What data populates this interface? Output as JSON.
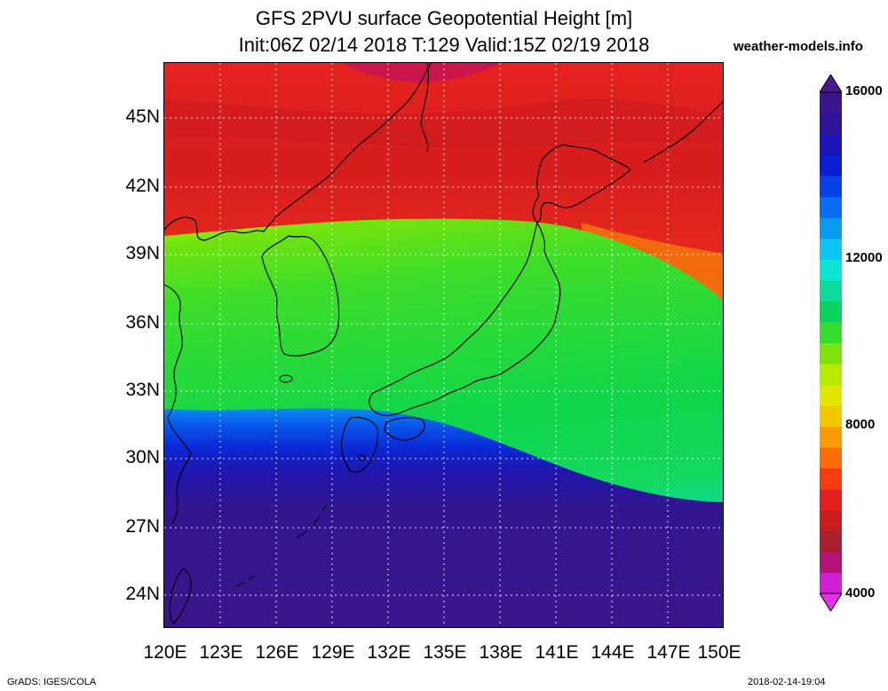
{
  "title_line1": "GFS 2PVU surface Geopotential Height [m]",
  "title_line2": "Init:06Z 02/14 2018 T:129 Valid:15Z 02/19 2018",
  "site": "weather-models.info",
  "lat_labels": [
    "45N",
    "42N",
    "39N",
    "36N",
    "33N",
    "30N",
    "27N",
    "24N"
  ],
  "lon_labels": [
    "120E",
    "123E",
    "126E",
    "129E",
    "132E",
    "135E",
    "138E",
    "141E",
    "144E",
    "147E",
    "150E"
  ],
  "colorbar": {
    "labels": [
      "16000",
      "12000",
      "8000",
      "4000"
    ],
    "colors": [
      "#d21dd6",
      "#b5127c",
      "#a8202e",
      "#c91c1c",
      "#e61e1e",
      "#f53c0f",
      "#fa6b0a",
      "#fa9b05",
      "#f2c800",
      "#e3e600",
      "#b7ea00",
      "#7ee30a",
      "#35dc2d",
      "#0ad25a",
      "#0bdc9a",
      "#0de6d2",
      "#0ac8f0",
      "#0a9bf0",
      "#0a6ef0",
      "#0a41e6",
      "#0a1fd2",
      "#1c14b4",
      "#2d1496",
      "#3c148c"
    ],
    "min_color": "#e632e6",
    "max_color": "#4b1a8c"
  },
  "footer_left": "GrADS: IGES/COLA",
  "footer_right": "2018-02-14-19:04"
}
